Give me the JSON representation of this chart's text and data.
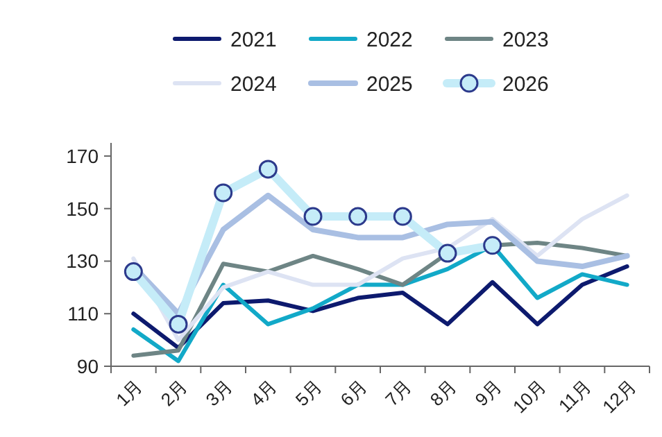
{
  "chart_data": {
    "type": "line",
    "categories": [
      "1月",
      "2月",
      "3月",
      "4月",
      "5月",
      "6月",
      "7月",
      "8月",
      "9月",
      "10月",
      "11月",
      "12月"
    ],
    "ylim": [
      90,
      175
    ],
    "yticks": [
      90,
      110,
      130,
      150,
      170
    ],
    "grid": false,
    "legend": "top",
    "line_style": "solid",
    "series": [
      {
        "name": "2021",
        "color": "#0d1a6e",
        "values": [
          110,
          97,
          114,
          115,
          111,
          116,
          118,
          106,
          122,
          106,
          121,
          128
        ]
      },
      {
        "name": "2022",
        "color": "#12a9c8",
        "values": [
          104,
          92,
          121,
          106,
          112,
          121,
          121,
          127,
          136,
          116,
          125,
          121
        ]
      },
      {
        "name": "2023",
        "color": "#6e8585",
        "values": [
          94,
          96,
          129,
          126,
          132,
          127,
          121,
          133,
          136,
          137,
          135,
          132
        ]
      },
      {
        "name": "2024",
        "color": "#dde3f3",
        "values": [
          131,
          100,
          120,
          126,
          121,
          121,
          131,
          135,
          146,
          132,
          146,
          155
        ]
      },
      {
        "name": "2025",
        "color": "#a9bfe3",
        "values": [
          128,
          110,
          142,
          155,
          142,
          139,
          139,
          144,
          145,
          130,
          128,
          132
        ]
      },
      {
        "name": "2026",
        "color": "#c5ecf8",
        "marker": "circle",
        "values": [
          126,
          106,
          156,
          165,
          147,
          147,
          147,
          133,
          136,
          null,
          null,
          null
        ]
      }
    ]
  }
}
